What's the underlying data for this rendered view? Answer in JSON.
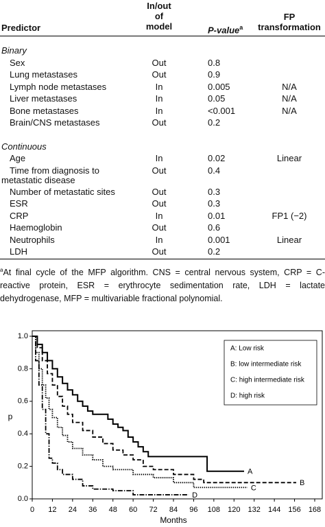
{
  "table": {
    "header": {
      "predictor": "Predictor",
      "in_out": [
        "In/out",
        "of",
        "model"
      ],
      "p_value": "P-value",
      "p_value_sup": "a",
      "fp": [
        "FP",
        "transformation"
      ]
    },
    "sections": [
      {
        "title": "Binary",
        "rows": [
          [
            "Sex",
            "Out",
            "0.8",
            null
          ],
          [
            "Lung metastases",
            "Out",
            "0.9",
            null
          ],
          [
            "Lymph node metastases",
            "In",
            "0.005",
            "N/A"
          ],
          [
            "Liver metastases",
            "In",
            "0.05",
            "N/A"
          ],
          [
            "Bone metastases",
            "In",
            "<0.001",
            "N/A"
          ],
          [
            "Brain/CNS metastases",
            "Out",
            "0.2",
            null
          ]
        ]
      },
      {
        "title": "Continuous",
        "rows": [
          [
            "Age",
            "In",
            "0.02",
            "Linear"
          ],
          [
            [
              "Time from diagnosis to",
              "metastatic disease"
            ],
            "Out",
            "0.4",
            null
          ],
          [
            "Number of metastatic sites",
            "Out",
            "0.3",
            null
          ],
          [
            "ESR",
            "Out",
            "0.3",
            null
          ],
          [
            "CRP",
            "In",
            "0.01",
            "FP1 (−2)"
          ],
          [
            "Haemoglobin",
            "Out",
            "0.6",
            null
          ],
          [
            "Neutrophils",
            "In",
            "0.001",
            "Linear"
          ],
          [
            "LDH",
            "Out",
            "0.2",
            null
          ]
        ]
      }
    ],
    "footnote_mark": "a",
    "footnote": "At final cycle of the MFP algorithm. CNS = central nervous system, CRP = C-reactive protein, ESR = erythrocyte sedimentation rate, LDH = lactate dehydrogenase, MFP = multivariable fractional polynomial."
  },
  "chart_data": {
    "type": "line",
    "x_label": "Months",
    "y_label": "p",
    "xlim": [
      0,
      168
    ],
    "xticks": [
      0,
      12,
      24,
      36,
      48,
      60,
      72,
      84,
      96,
      108,
      120,
      132,
      144,
      156,
      168
    ],
    "ylim": [
      0,
      1
    ],
    "yticks": [
      {
        "value": 0,
        "label": "0.0"
      },
      {
        "value": 0.2,
        "label": "0.2"
      },
      {
        "value": 0.4,
        "label": "0.4"
      },
      {
        "value": 0.6,
        "label": "0.6"
      },
      {
        "value": 0.8,
        "label": "0.8"
      },
      {
        "value": 1,
        "label": "1.0"
      }
    ],
    "legend": "upper right",
    "series": [
      {
        "name": "A: Low risk",
        "label": "A",
        "color": "#000000",
        "dash": "none",
        "width": 2,
        "x": [
          0,
          3,
          3,
          6,
          6,
          9,
          9,
          12,
          12,
          15,
          15,
          18,
          18,
          21,
          21,
          24,
          24,
          27,
          27,
          30,
          30,
          33,
          33,
          36,
          36,
          45,
          45,
          48,
          48,
          51,
          51,
          54,
          54,
          57,
          57,
          60,
          60,
          63,
          63,
          66,
          66,
          69,
          69,
          104,
          104,
          126
        ],
        "values": [
          1,
          1,
          0.95,
          0.95,
          0.9,
          0.9,
          0.85,
          0.85,
          0.8,
          0.8,
          0.75,
          0.75,
          0.71,
          0.71,
          0.67,
          0.67,
          0.64,
          0.64,
          0.6,
          0.6,
          0.57,
          0.57,
          0.54,
          0.54,
          0.52,
          0.52,
          0.49,
          0.49,
          0.46,
          0.46,
          0.44,
          0.44,
          0.42,
          0.42,
          0.38,
          0.38,
          0.35,
          0.35,
          0.32,
          0.32,
          0.29,
          0.29,
          0.26,
          0.26,
          0.17,
          0.17
        ]
      },
      {
        "name": "B: low intermediate risk",
        "label": "B",
        "color": "#000000",
        "dash": "6,3",
        "width": 1.8,
        "x": [
          0,
          3,
          3,
          6,
          6,
          9,
          9,
          12,
          12,
          15,
          15,
          18,
          18,
          21,
          21,
          24,
          24,
          30,
          30,
          36,
          36,
          42,
          42,
          48,
          48,
          54,
          54,
          60,
          60,
          66,
          66,
          72,
          72,
          84,
          84,
          96,
          96,
          102,
          102,
          157
        ],
        "values": [
          1,
          1,
          0.93,
          0.93,
          0.85,
          0.85,
          0.77,
          0.77,
          0.7,
          0.7,
          0.63,
          0.63,
          0.57,
          0.57,
          0.52,
          0.52,
          0.47,
          0.47,
          0.42,
          0.42,
          0.38,
          0.38,
          0.34,
          0.34,
          0.3,
          0.3,
          0.27,
          0.27,
          0.24,
          0.24,
          0.2,
          0.2,
          0.18,
          0.18,
          0.15,
          0.15,
          0.12,
          0.12,
          0.1,
          0.1
        ]
      },
      {
        "name": "C: high intermediate risk",
        "label": "C",
        "color": "#000000",
        "dash": "1.5,1.5",
        "width": 1.8,
        "x": [
          0,
          2,
          2,
          4,
          4,
          6,
          6,
          8,
          8,
          10,
          10,
          12,
          12,
          15,
          15,
          18,
          18,
          21,
          21,
          24,
          24,
          30,
          30,
          36,
          36,
          42,
          42,
          48,
          48,
          60,
          60,
          72,
          72,
          84,
          84,
          96,
          96,
          128
        ],
        "values": [
          1,
          1,
          0.9,
          0.9,
          0.8,
          0.8,
          0.7,
          0.7,
          0.62,
          0.62,
          0.55,
          0.55,
          0.5,
          0.5,
          0.44,
          0.44,
          0.39,
          0.39,
          0.35,
          0.35,
          0.31,
          0.31,
          0.27,
          0.27,
          0.24,
          0.24,
          0.2,
          0.2,
          0.18,
          0.18,
          0.15,
          0.15,
          0.13,
          0.13,
          0.1,
          0.1,
          0.07,
          0.07
        ]
      },
      {
        "name": "D: high risk",
        "label": "D",
        "color": "#000000",
        "dash": "7,2,1.5,2",
        "width": 1.8,
        "x": [
          0,
          2,
          2,
          4,
          4,
          6,
          6,
          8,
          8,
          10,
          10,
          12,
          12,
          15,
          15,
          18,
          18,
          24,
          24,
          30,
          30,
          36,
          36,
          48,
          48,
          60,
          60,
          93
        ],
        "values": [
          1,
          1,
          0.85,
          0.85,
          0.7,
          0.7,
          0.55,
          0.55,
          0.4,
          0.4,
          0.25,
          0.25,
          0.22,
          0.22,
          0.18,
          0.18,
          0.15,
          0.15,
          0.12,
          0.12,
          0.08,
          0.08,
          0.06,
          0.06,
          0.05,
          0.05,
          0.025,
          0.025
        ]
      }
    ]
  }
}
